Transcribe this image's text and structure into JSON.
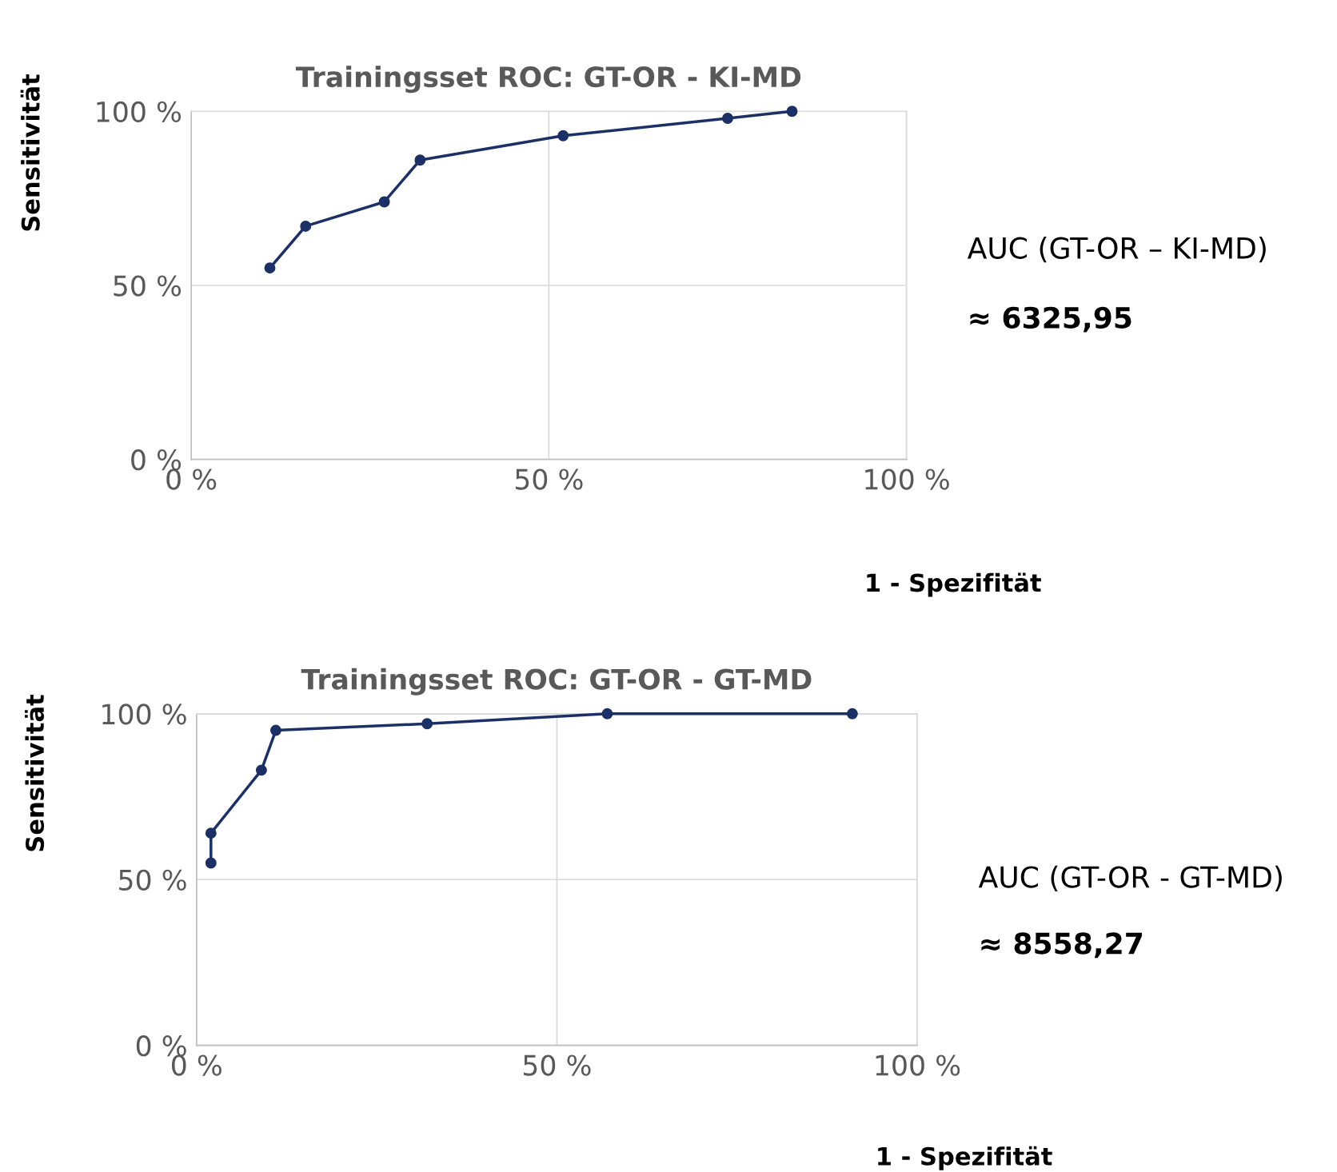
{
  "chart_data": [
    {
      "type": "line",
      "title": "Trainingsset ROC: GT-OR - KI-MD",
      "xlabel": "1 - Spezifität",
      "ylabel": "Sensitivität",
      "x": [
        11,
        16,
        27,
        32,
        52,
        75,
        84
      ],
      "series": [
        {
          "color": "#1b3066",
          "values": [
            55,
            67,
            74,
            86,
            93,
            98,
            100
          ]
        }
      ],
      "xlim": [
        0,
        100
      ],
      "ylim": [
        0,
        100
      ],
      "xticks": [
        {
          "value": 0,
          "label": "0 %"
        },
        {
          "value": 50,
          "label": "50 %"
        },
        {
          "value": 100,
          "label": "100 %"
        }
      ],
      "yticks": [
        {
          "value": 0,
          "label": "0 %"
        },
        {
          "value": 50,
          "label": "50 %"
        },
        {
          "value": 100,
          "label": "100 %"
        }
      ],
      "grid": true,
      "marker": "circle",
      "line_style": "solid",
      "annotations": [
        "AUC (GT-OR – KI-MD)",
        "≈ 6325,95"
      ]
    },
    {
      "type": "line",
      "title": "Trainingsset ROC: GT-OR - GT-MD",
      "xlabel": "1 - Spezifität",
      "ylabel": "Sensitivität",
      "x": [
        2,
        2,
        9,
        11,
        32,
        57,
        91
      ],
      "series": [
        {
          "color": "#1b3066",
          "values": [
            55,
            64,
            83,
            95,
            97,
            100,
            100
          ]
        }
      ],
      "xlim": [
        0,
        100
      ],
      "ylim": [
        0,
        100
      ],
      "xticks": [
        {
          "value": 0,
          "label": "0 %"
        },
        {
          "value": 50,
          "label": "50 %"
        },
        {
          "value": 100,
          "label": "100 %"
        }
      ],
      "yticks": [
        {
          "value": 0,
          "label": "0 %"
        },
        {
          "value": 50,
          "label": "50 %"
        },
        {
          "value": 100,
          "label": "100 %"
        }
      ],
      "grid": true,
      "marker": "circle",
      "line_style": "solid",
      "annotations": [
        "AUC (GT-OR - GT-MD)",
        "≈ 8558,27"
      ]
    }
  ]
}
